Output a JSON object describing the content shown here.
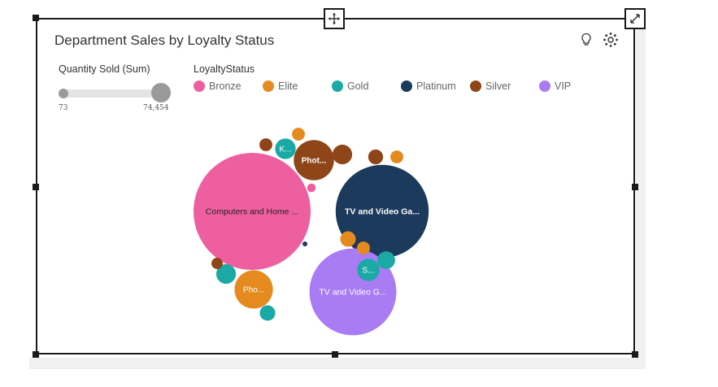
{
  "card": {
    "title": "Department Sales by Loyalty Status",
    "icons": [
      "lightbulb-icon",
      "settings-gear-icon",
      "move-icon",
      "expand-icon"
    ]
  },
  "slider": {
    "label": "Quantity Sold (Sum)",
    "min_label": "73",
    "max_label": "74,454"
  },
  "legend": {
    "title": "LoyaltyStatus",
    "items": [
      {
        "label": "Bronze",
        "color": "#ee5fa0"
      },
      {
        "label": "Elite",
        "color": "#e58a1f"
      },
      {
        "label": "Gold",
        "color": "#1ba9a5"
      },
      {
        "label": "Platinum",
        "color": "#1c3a5c"
      },
      {
        "label": "Silver",
        "color": "#8e4518"
      },
      {
        "label": "VIP",
        "color": "#a97cf4"
      }
    ]
  },
  "chart_data": {
    "type": "bubble",
    "title": "Department Sales by Loyalty Status",
    "size_measure": "Quantity Sold (Sum)",
    "color_by": "LoyaltyStatus",
    "size_range": [
      73,
      74454
    ],
    "bubbles": [
      {
        "label": "Computers and Home ...",
        "status": "Bronze",
        "value": 74454
      },
      {
        "label": "TV and Video Ga...",
        "status": "Platinum",
        "value": 47000
      },
      {
        "label": "TV and Video G...",
        "status": "VIP",
        "value": 41000
      },
      {
        "label": "Phot...",
        "status": "Silver",
        "value": 8800
      },
      {
        "label": "Pho...",
        "status": "Elite",
        "value": 8000
      },
      {
        "label": "S...",
        "status": "Gold",
        "value": 2700
      },
      {
        "label": "K...",
        "status": "Gold",
        "value": 2300
      },
      {
        "label": "",
        "status": "Silver",
        "value": 2100
      },
      {
        "label": "",
        "status": "Gold",
        "value": 2100
      },
      {
        "label": "",
        "status": "Gold",
        "value": 1700
      },
      {
        "label": "",
        "status": "Elite",
        "value": 1300
      },
      {
        "label": "",
        "status": "Gold",
        "value": 1300
      },
      {
        "label": "",
        "status": "Silver",
        "value": 1200
      },
      {
        "label": "",
        "status": "Silver",
        "value": 900
      },
      {
        "label": "",
        "status": "Elite",
        "value": 900
      },
      {
        "label": "",
        "status": "Elite",
        "value": 900
      },
      {
        "label": "",
        "status": "Elite",
        "value": 900
      },
      {
        "label": "",
        "status": "Silver",
        "value": 700
      },
      {
        "label": "",
        "status": "Bronze",
        "value": 400
      },
      {
        "label": "",
        "status": "Platinum",
        "value": 73
      }
    ]
  }
}
